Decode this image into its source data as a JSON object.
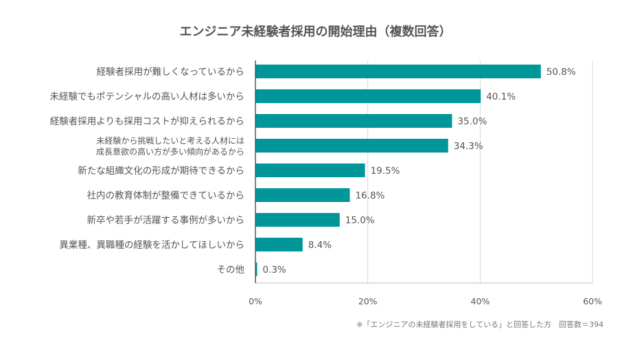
{
  "chart_data": {
    "type": "bar",
    "orientation": "horizontal",
    "title": "エンジニア未経験者採用の開始理由（複数回答）",
    "categories": [
      "経験者採用が難しくなっているから",
      "未経験でもポテンシャルの高い人材は多いから",
      "経験者採用よりも採用コストが抑えられるから",
      "未経験から挑戦したいと考える人材には\n成長意欲の高い方が多い傾向があるから",
      "新たな組織文化の形成が期待できるから",
      "社内の教育体制が整備できているから",
      "新卒や若手が活躍する事例が多いから",
      "異業種、異職種の経験を活かしてほしいから",
      "その他"
    ],
    "values": [
      50.8,
      40.1,
      35.0,
      34.3,
      19.5,
      16.8,
      15.0,
      8.4,
      0.3
    ],
    "value_labels": [
      "50.8%",
      "40.1%",
      "35.0%",
      "34.3%",
      "19.5%",
      "16.8%",
      "15.0%",
      "8.4%",
      "0.3%"
    ],
    "xlim": [
      0,
      60
    ],
    "xticks": [
      "0%",
      "20%",
      "40%",
      "60%"
    ],
    "grid": true,
    "bar_color": "#00969a",
    "note": "※「エンジニアの未経験者採用をしている」と回答した方　回答数＝394"
  }
}
